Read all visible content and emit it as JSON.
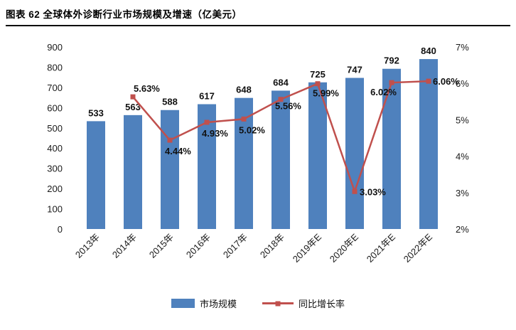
{
  "figure": {
    "title": "图表 62 全球体外诊断行业市场规模及增速（亿美元）"
  },
  "chart_data": {
    "type": "combo",
    "title": "全球体外诊断行业市场规模及增速（亿美元）",
    "categories": [
      "2013年",
      "2014年",
      "2015年",
      "2016年",
      "2017年",
      "2018年",
      "2019年E",
      "2020年E",
      "2021年E",
      "2022年E"
    ],
    "series": [
      {
        "name": "市场规模",
        "type": "bar",
        "axis": "left",
        "color": "#4f81bd",
        "values": [
          533,
          563,
          588,
          617,
          648,
          684,
          725,
          747,
          792,
          840
        ],
        "labels": [
          "533",
          "563",
          "588",
          "617",
          "648",
          "684",
          "725",
          "747",
          "792",
          "840"
        ]
      },
      {
        "name": "同比增长率",
        "type": "line",
        "axis": "right",
        "color": "#c0504d",
        "values": [
          null,
          5.63,
          4.44,
          4.93,
          5.02,
          5.56,
          5.99,
          3.03,
          6.02,
          6.06
        ],
        "labels": [
          null,
          "5.63%",
          "4.44%",
          "4.93%",
          "5.02%",
          "5.56%",
          "5.99%",
          "3.03%",
          "6.02%",
          "6.06%"
        ]
      }
    ],
    "left_axis": {
      "min": 0,
      "max": 900,
      "step": 100,
      "ticks": [
        "0",
        "100",
        "200",
        "300",
        "400",
        "500",
        "600",
        "700",
        "800",
        "900"
      ]
    },
    "right_axis": {
      "min": 2,
      "max": 7,
      "step": 1,
      "ticks": [
        "2%",
        "3%",
        "4%",
        "5%",
        "6%",
        "7%"
      ]
    },
    "grid": false,
    "legend_position": "bottom",
    "legend": [
      "市场规模",
      "同比增长率"
    ]
  }
}
